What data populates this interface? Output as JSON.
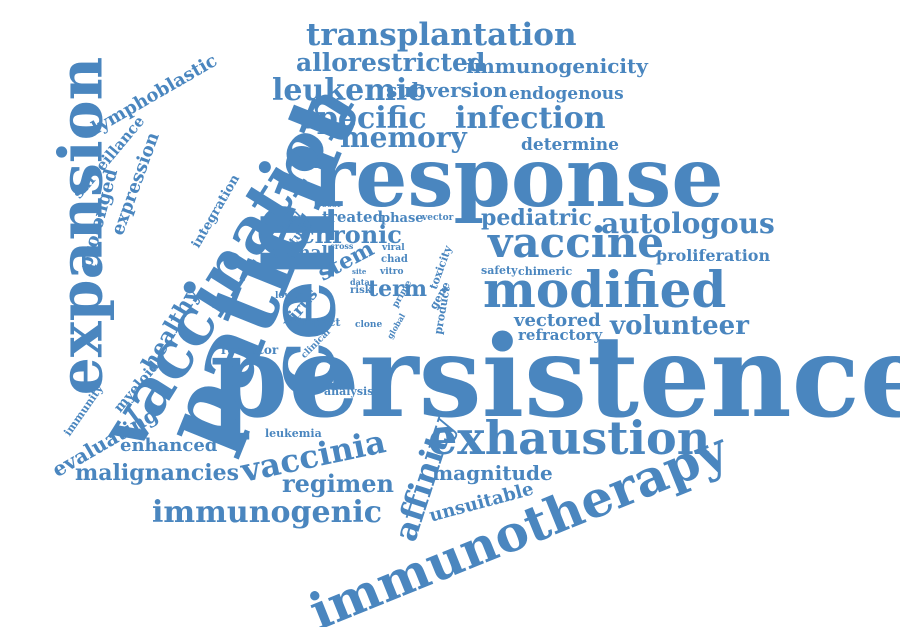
{
  "colors": {
    "word": "#4a86bf",
    "background": "#ffffff"
  },
  "words": {
    "persistence": "persistence",
    "response": "response",
    "cell": "cell",
    "patient": "patient",
    "vaccination": "vaccination",
    "expansion": "expansion",
    "immunotherapy": "immunotherapy",
    "exhaustion": "exhaustion",
    "modified": "modified",
    "vaccine": "vaccine",
    "transplantation": "transplantation",
    "allorestricted": "allorestricted",
    "immunogenicity": "immunogenicity",
    "leukemic": "leukemic",
    "subversion": "subversion",
    "endogenous": "endogenous",
    "specific": "specific",
    "infection": "infection",
    "memory": "memory",
    "determine": "determine",
    "lymphoblastic": "lymphoblastic",
    "surveillance": "surveillance",
    "prolonged": "prolonged",
    "expression": "expression",
    "integration": "integration",
    "healthy": "healthy",
    "myeloid": "myeloid",
    "immunity": "immunity",
    "evaluating": "evaluating",
    "malignancies": "malignancies",
    "enhanced": "enhanced",
    "vaccinia": "vaccinia",
    "regimen": "regimen",
    "immunogenic": "immunogenic",
    "affinity": "affinity",
    "magnitude": "magnitude",
    "unsuitable": "unsuitable",
    "pediatric": "pediatric",
    "autologous": "autologous",
    "proliferation": "proliferation",
    "volunteer": "volunteer",
    "vectored": "vectored",
    "refractory": "refractory",
    "chronic": "chronic",
    "treated": "treated",
    "phase": "phase",
    "vector": "vector",
    "boost": "boost",
    "study": "study",
    "level": "level",
    "clonal": "clonal",
    "stem": "stem",
    "cross": "cross",
    "viral": "viral",
    "chad": "chad",
    "site": "site",
    "data": "data",
    "vitro": "vitro",
    "risk": "risk",
    "term": "term",
    "prime": "prime",
    "toxicity": "toxicity",
    "gene": "gene",
    "product": "product",
    "safety": "safety",
    "chimeric": "chimeric",
    "virus": "virus",
    "lower": "lower",
    "impact": "impact",
    "clone": "clone",
    "clinical": "clinical",
    "global": "global",
    "receptor": "receptor",
    "analysis": "analysis",
    "leukemia": "leukemia"
  }
}
